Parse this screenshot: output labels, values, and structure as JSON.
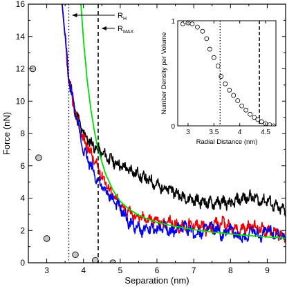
{
  "chart_data": [
    {
      "type": "line",
      "xlabel": "Separation (nm)",
      "ylabel": "Force (nN)",
      "xlim": [
        2.5,
        9.5
      ],
      "ylim": [
        0,
        16
      ],
      "xticks": [
        3,
        4,
        5,
        6,
        7,
        8,
        9
      ],
      "yticks": [
        0,
        2,
        4,
        6,
        8,
        10,
        12,
        14,
        16
      ],
      "grid": false,
      "legend": "none",
      "colors": {
        "black": "#000000",
        "red": "#ee0000",
        "blue": "#0000ee",
        "green": "#00dd00",
        "marker_fill": "#c8c8c8"
      },
      "series": [
        {
          "color": "black",
          "x": [
            3.42,
            3.6,
            3.8,
            4.0,
            4.2,
            4.4,
            4.6,
            4.8,
            5.0,
            5.2,
            5.4,
            5.6,
            5.8,
            6.0,
            6.2,
            6.4,
            6.6,
            6.8,
            7.0,
            7.2,
            7.4,
            7.6,
            7.8,
            8.0,
            8.2,
            8.4,
            8.6,
            8.8,
            9.0,
            9.2,
            9.5
          ],
          "y": [
            16.0,
            11.5,
            9.2,
            8.0,
            7.4,
            7.0,
            6.6,
            6.3,
            6.0,
            5.8,
            5.6,
            5.3,
            5.1,
            4.8,
            4.6,
            4.5,
            4.2,
            4.0,
            3.9,
            3.8,
            3.7,
            3.7,
            3.8,
            3.6,
            3.9,
            4.0,
            4.1,
            3.8,
            3.9,
            3.5,
            3.2
          ]
        },
        {
          "color": "red",
          "x": [
            3.42,
            3.6,
            3.8,
            4.0,
            4.2,
            4.4,
            4.6,
            4.8,
            5.0,
            5.2,
            5.4,
            5.6,
            5.8,
            6.0,
            6.2,
            6.4,
            6.6,
            6.8,
            7.0,
            7.2,
            7.4,
            7.6,
            7.8,
            8.0,
            8.2,
            8.4,
            8.6,
            8.8,
            9.0,
            9.2,
            9.5
          ],
          "y": [
            16.0,
            11.2,
            9.0,
            7.6,
            6.8,
            5.8,
            5.0,
            4.2,
            3.6,
            3.2,
            2.9,
            2.8,
            2.7,
            2.6,
            2.4,
            2.5,
            2.2,
            2.3,
            2.4,
            2.3,
            2.0,
            2.4,
            2.5,
            2.2,
            2.0,
            2.1,
            2.3,
            2.1,
            2.0,
            1.9,
            1.6
          ]
        },
        {
          "color": "blue",
          "x": [
            3.42,
            3.6,
            3.8,
            4.0,
            4.2,
            4.4,
            4.6,
            4.8,
            5.0,
            5.2,
            5.4,
            5.6,
            5.8,
            6.0,
            6.2,
            6.4,
            6.6,
            6.8,
            7.0,
            7.2,
            7.4,
            7.6,
            7.8,
            8.0,
            8.2,
            8.4,
            8.6,
            8.8,
            9.0,
            9.2,
            9.5
          ],
          "y": [
            16.0,
            11.4,
            9.0,
            7.0,
            6.0,
            5.0,
            4.4,
            3.9,
            3.4,
            2.6,
            2.2,
            2.0,
            2.1,
            2.0,
            2.3,
            1.9,
            2.1,
            2.2,
            1.8,
            1.9,
            2.2,
            2.1,
            1.6,
            2.2,
            1.6,
            1.5,
            2.1,
            1.6,
            2.1,
            1.8,
            1.4
          ]
        },
        {
          "color": "green",
          "x": [
            3.93,
            4.0,
            4.1,
            4.2,
            4.3,
            4.4,
            4.6,
            4.8,
            5.0,
            5.25,
            5.5,
            5.75,
            6.0,
            6.5,
            7.0,
            7.5,
            8.0,
            8.5,
            9.0,
            9.5
          ],
          "y": [
            16.0,
            13.8,
            11.3,
            9.5,
            8.1,
            7.0,
            5.5,
            4.5,
            3.8,
            3.3,
            2.95,
            2.7,
            2.5,
            2.25,
            2.05,
            1.9,
            1.78,
            1.68,
            1.6,
            1.52
          ]
        }
      ],
      "markers": {
        "shape": "circle",
        "x": [
          2.62,
          2.78,
          3.0,
          3.78,
          4.32,
          4.8
        ],
        "y": [
          12.0,
          6.5,
          1.5,
          0.5,
          0.15,
          0.0
        ]
      },
      "vlines": [
        {
          "x": 3.6,
          "style": "dotted",
          "label": "R",
          "label_sub": "H"
        },
        {
          "x": 4.4,
          "style": "dashed",
          "label": "R",
          "label_sub": "MAX"
        }
      ]
    },
    {
      "type": "scatter",
      "xlabel": "Radial Distance (nm)",
      "ylabel": "Number Density per Volume",
      "xlim": [
        2.8,
        4.7
      ],
      "ylim": [
        0,
        1
      ],
      "xticks": [
        3,
        3.5,
        4,
        4.5
      ],
      "xtick_labels": [
        "3",
        "3.5",
        "4",
        "4.5"
      ],
      "yticks": [
        0,
        1
      ],
      "grid": false,
      "x": [
        2.9,
        2.95,
        3.0,
        3.08,
        3.18,
        3.28,
        3.36,
        3.42,
        3.5,
        3.58,
        3.64,
        3.72,
        3.8,
        3.88,
        3.96,
        4.04,
        4.12,
        4.2,
        4.28,
        4.35,
        4.42,
        4.5,
        4.58,
        4.65
      ],
      "y": [
        0.97,
        0.99,
        0.98,
        0.97,
        0.94,
        0.9,
        0.83,
        0.73,
        0.65,
        0.57,
        0.47,
        0.4,
        0.34,
        0.29,
        0.24,
        0.19,
        0.15,
        0.11,
        0.08,
        0.06,
        0.04,
        0.02,
        0.01,
        0.0
      ],
      "vlines": [
        {
          "x": 3.62,
          "style": "dotted"
        },
        {
          "x": 4.38,
          "style": "dashed"
        }
      ]
    }
  ]
}
